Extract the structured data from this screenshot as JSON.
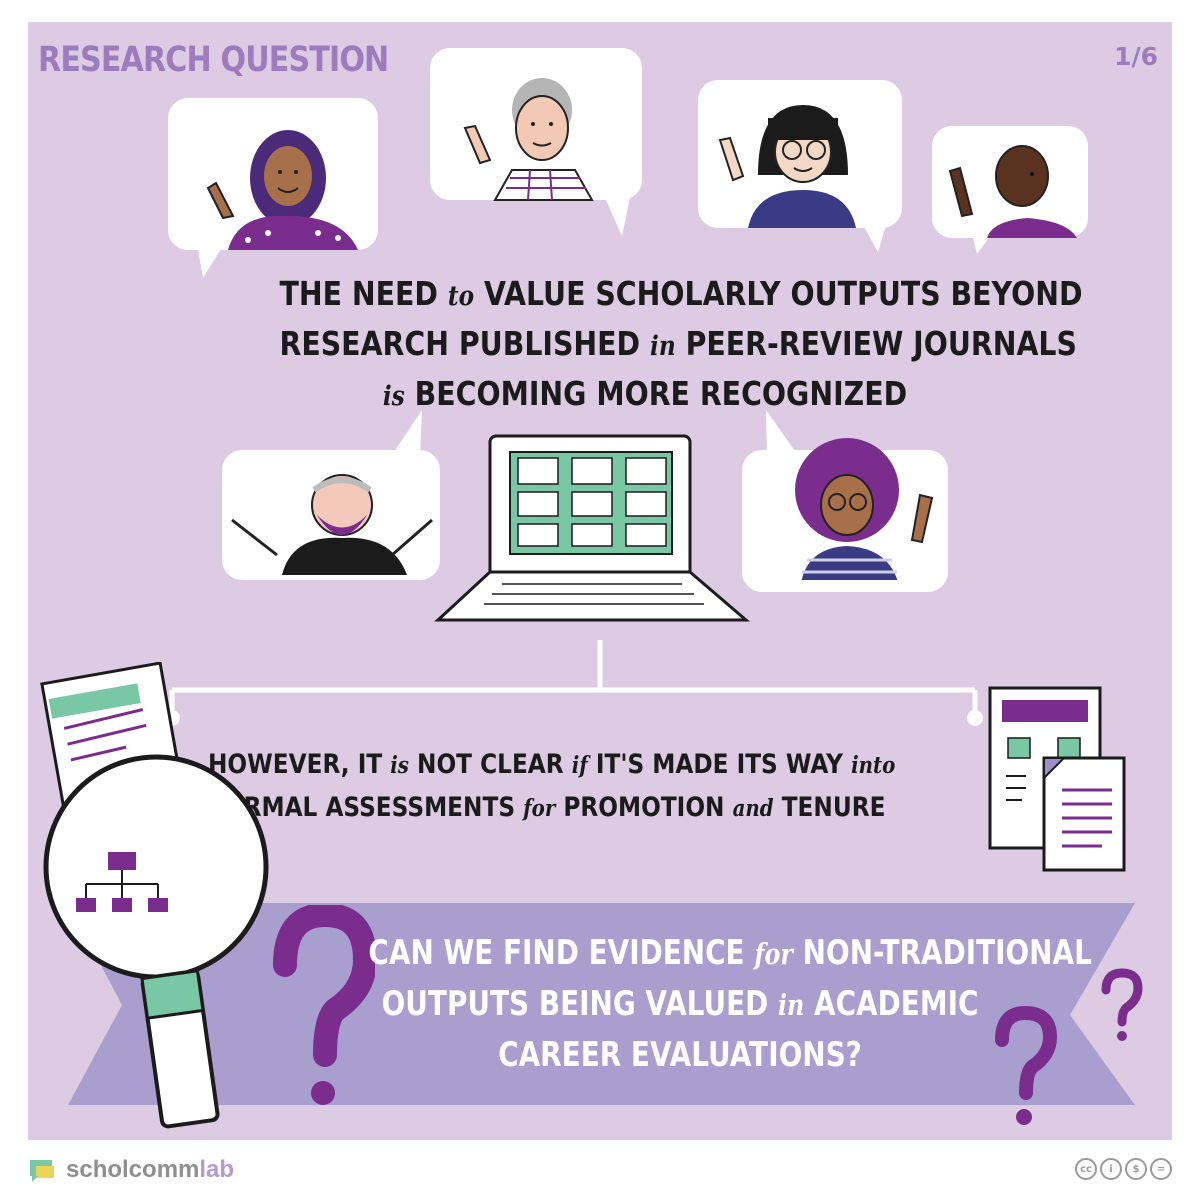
{
  "header": {
    "title": "RESEARCH QUESTION",
    "page": "1/6"
  },
  "headline": {
    "line1": {
      "a": "THE NEED",
      "conn": "to",
      "b": "VALUE SCHOLARLY OUTPUTS BEYOND"
    },
    "line2": {
      "a": "RESEARCH PUBLISHED",
      "conn": "in",
      "b": "PEER-REVIEW JOURNALS"
    },
    "line3": {
      "conn": "is",
      "b": "BECOMING MORE RECOGNIZED"
    }
  },
  "however": {
    "line1": {
      "a": "HOWEVER, IT",
      "c1": "is",
      "b": "NOT CLEAR",
      "c2": "if",
      "c": "IT'S MADE ITS WAY",
      "c3": "into"
    },
    "line2": {
      "a": "FORMAL ASSESSMENTS",
      "c1": "for",
      "b": "PROMOTION",
      "c2": "and",
      "c": "TENURE"
    }
  },
  "question": {
    "line1": {
      "a": "CAN WE FIND EVIDENCE",
      "conn": "for",
      "b": "NON-TRADITIONAL"
    },
    "line2": {
      "a": "OUTPUTS BEING VALUED",
      "conn": "in",
      "b": "ACADEMIC"
    },
    "line3": {
      "a": "CAREER EVALUATIONS?"
    },
    "marks": "?"
  },
  "footer": {
    "brand_a": "scholcomm",
    "brand_b": "lab"
  },
  "colors": {
    "background": "#dccbe3",
    "purple": "#7b2d8e",
    "banner": "#a99fcf",
    "green": "#79c7a4",
    "title": "#9d7cbd"
  },
  "icons": [
    "magnifier-icon",
    "laptop-icon",
    "document-icon",
    "question-mark-icon",
    "cc-license-icon"
  ]
}
